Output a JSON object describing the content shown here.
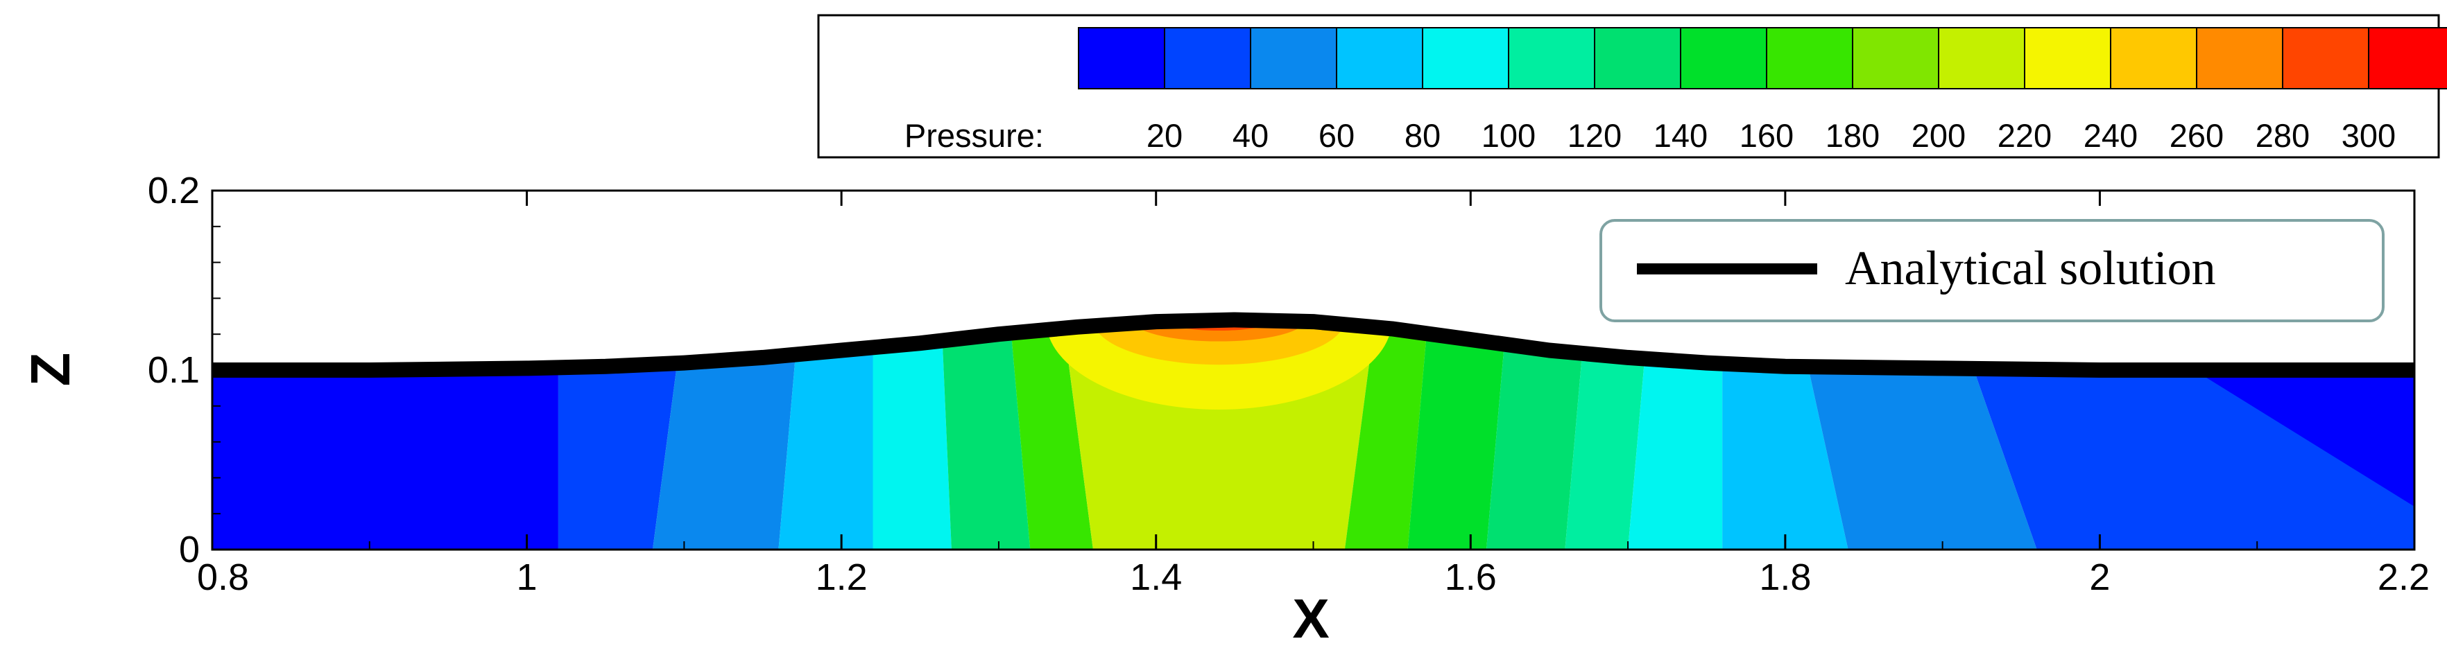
{
  "chart_data": {
    "type": "contour",
    "xlabel": "X",
    "ylabel": "Z",
    "xlim": [
      0.8,
      2.2
    ],
    "ylim": [
      0,
      0.2
    ],
    "xticks": [
      "0.8",
      "1",
      "1.2",
      "1.4",
      "1.6",
      "1.8",
      "2",
      "2.2"
    ],
    "xtick_values": [
      0.8,
      1.0,
      1.2,
      1.4,
      1.6,
      1.8,
      2.0,
      2.2
    ],
    "yticks": [
      "0",
      "0.1",
      "0.2"
    ],
    "ytick_values": [
      0,
      0.1,
      0.2
    ],
    "colorbar": {
      "label": "Pressure:",
      "levels": [
        20,
        40,
        60,
        80,
        100,
        120,
        140,
        160,
        180,
        200,
        220,
        240,
        260,
        280,
        300
      ],
      "labels": [
        "20",
        "40",
        "60",
        "80",
        "100",
        "120",
        "140",
        "160",
        "180",
        "200",
        "220",
        "240",
        "260",
        "280",
        "300"
      ],
      "colors": [
        "#0000ff",
        "#0044ff",
        "#0a88ee",
        "#00c4ff",
        "#00f5f0",
        "#00eea0",
        "#00e070",
        "#00e02a",
        "#37e600",
        "#80e600",
        "#c4f000",
        "#f5f500",
        "#ffc800",
        "#ff8a00",
        "#ff4500",
        "#ff0000"
      ]
    },
    "series": [
      {
        "name": "Analytical solution",
        "x": [
          0.8,
          0.9,
          1.0,
          1.05,
          1.1,
          1.15,
          1.2,
          1.25,
          1.3,
          1.35,
          1.4,
          1.45,
          1.5,
          1.55,
          1.6,
          1.65,
          1.7,
          1.75,
          1.8,
          1.9,
          2.0,
          2.1,
          2.2
        ],
        "y": [
          0.1,
          0.1,
          0.101,
          0.102,
          0.104,
          0.107,
          0.111,
          0.115,
          0.12,
          0.124,
          0.127,
          0.128,
          0.127,
          0.123,
          0.117,
          0.111,
          0.107,
          0.104,
          0.102,
          0.101,
          0.1,
          0.1,
          0.1
        ]
      }
    ],
    "legend_position": "top-right"
  }
}
